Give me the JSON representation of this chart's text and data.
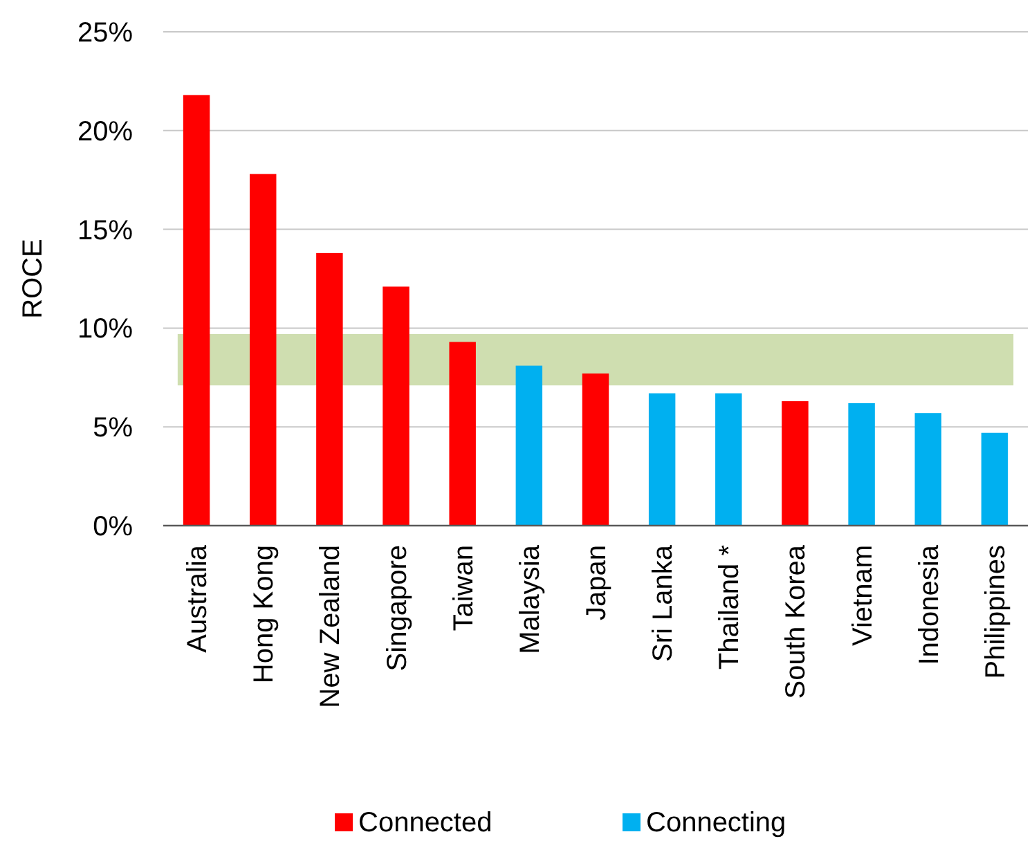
{
  "chart_data": {
    "type": "bar",
    "ylabel": "ROCE",
    "categories": [
      "Australia",
      "Hong Kong",
      "New Zealand",
      "Singapore",
      "Taiwan",
      "Malaysia",
      "Japan",
      "Sri Lanka",
      "Thailand *",
      "South Korea",
      "Vietnam",
      "Indonesia",
      "Philippines"
    ],
    "series": [
      {
        "name": "Connected",
        "color": "#ff0000",
        "values": [
          21.8,
          17.8,
          13.8,
          12.1,
          9.3,
          null,
          7.7,
          null,
          null,
          6.3,
          null,
          null,
          null
        ]
      },
      {
        "name": "Connecting",
        "color": "#00b0f0",
        "values": [
          null,
          null,
          null,
          null,
          null,
          8.1,
          null,
          6.7,
          6.7,
          null,
          6.2,
          5.7,
          4.7
        ]
      }
    ],
    "ylim": [
      0,
      25
    ],
    "yticks": [
      {
        "value": 0,
        "label": "0%"
      },
      {
        "value": 5,
        "label": "5%"
      },
      {
        "value": 10,
        "label": "10%"
      },
      {
        "value": 15,
        "label": "15%"
      },
      {
        "value": 20,
        "label": "20%"
      },
      {
        "value": 25,
        "label": "25%"
      }
    ],
    "grid": "y",
    "legend": "bottom",
    "bands": [
      {
        "axis": "y",
        "from": 7.1,
        "to": 9.7,
        "color": "#cfdeb0"
      }
    ]
  }
}
